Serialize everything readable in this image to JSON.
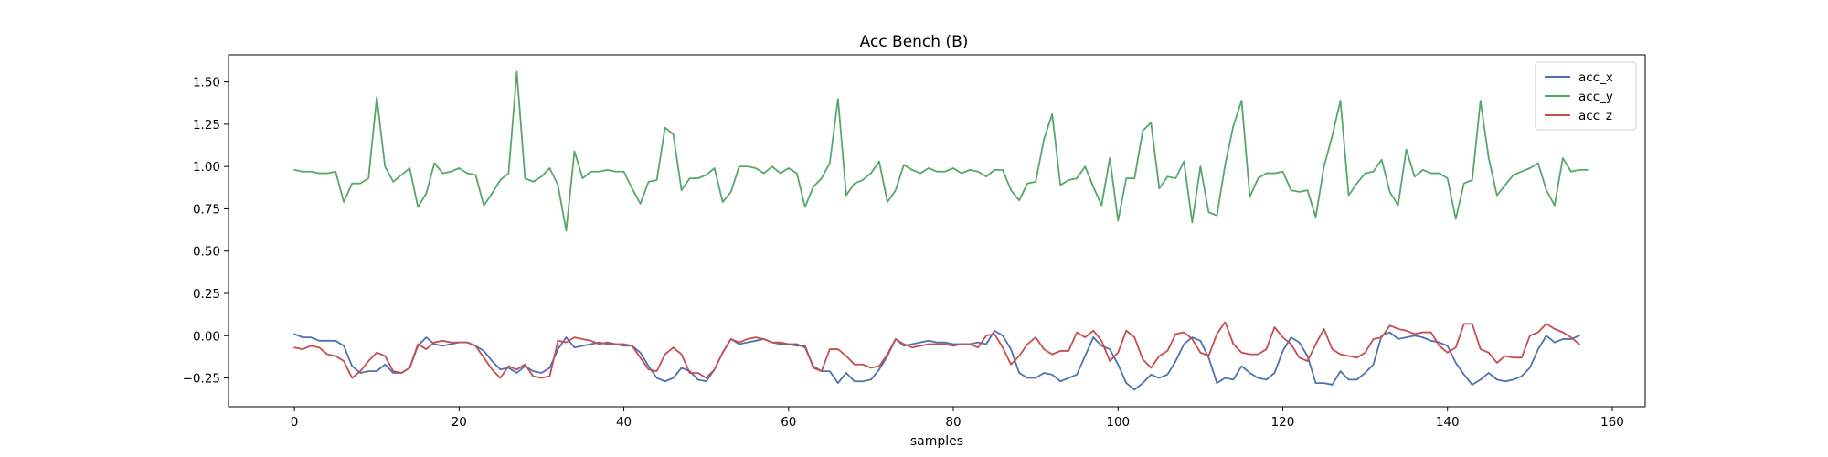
{
  "chart_data": {
    "type": "line",
    "title": "Acc Bench (B)",
    "xlabel": "samples",
    "ylabel": "",
    "xlim": [
      -8,
      164
    ],
    "ylim": [
      -0.42,
      1.66
    ],
    "xticks": [
      0,
      20,
      40,
      60,
      80,
      100,
      120,
      140,
      160
    ],
    "yticks": [
      -0.25,
      0.0,
      0.25,
      0.5,
      0.75,
      1.0,
      1.25,
      1.5
    ],
    "ytick_labels": [
      "−0.25",
      "0.00",
      "0.25",
      "0.50",
      "0.75",
      "1.00",
      "1.25",
      "1.50"
    ],
    "grid": false,
    "legend_position": "top-right",
    "series": [
      {
        "name": "acc_x",
        "color": "#4c72b0",
        "values": [
          0.01,
          -0.01,
          -0.01,
          -0.03,
          -0.03,
          -0.03,
          -0.06,
          -0.18,
          -0.22,
          -0.21,
          -0.21,
          -0.17,
          -0.22,
          -0.22,
          -0.19,
          -0.06,
          -0.01,
          -0.05,
          -0.06,
          -0.05,
          -0.04,
          -0.04,
          -0.06,
          -0.09,
          -0.15,
          -0.2,
          -0.19,
          -0.22,
          -0.18,
          -0.21,
          -0.22,
          -0.19,
          -0.08,
          -0.01,
          -0.07,
          -0.06,
          -0.05,
          -0.04,
          -0.05,
          -0.05,
          -0.06,
          -0.06,
          -0.1,
          -0.18,
          -0.25,
          -0.27,
          -0.25,
          -0.19,
          -0.21,
          -0.26,
          -0.27,
          -0.2,
          -0.1,
          -0.02,
          -0.05,
          -0.04,
          -0.03,
          -0.02,
          -0.04,
          -0.05,
          -0.05,
          -0.05,
          -0.07,
          -0.18,
          -0.21,
          -0.21,
          -0.28,
          -0.22,
          -0.27,
          -0.27,
          -0.26,
          -0.2,
          -0.12,
          -0.02,
          -0.06,
          -0.05,
          -0.04,
          -0.03,
          -0.04,
          -0.04,
          -0.05,
          -0.05,
          -0.05,
          -0.04,
          -0.05,
          0.03,
          0.0,
          -0.08,
          -0.22,
          -0.25,
          -0.25,
          -0.22,
          -0.23,
          -0.27,
          -0.25,
          -0.23,
          -0.12,
          -0.01,
          -0.06,
          -0.08,
          -0.17,
          -0.28,
          -0.32,
          -0.28,
          -0.23,
          -0.25,
          -0.23,
          -0.15,
          -0.05,
          -0.01,
          -0.03,
          -0.13,
          -0.28,
          -0.25,
          -0.26,
          -0.18,
          -0.22,
          -0.25,
          -0.26,
          -0.22,
          -0.09,
          -0.01,
          -0.04,
          -0.12,
          -0.28,
          -0.28,
          -0.29,
          -0.21,
          -0.26,
          -0.26,
          -0.22,
          -0.17,
          0.0,
          0.02,
          -0.02,
          -0.01,
          0.0,
          -0.01,
          -0.03,
          -0.04,
          -0.06,
          -0.16,
          -0.23,
          -0.29,
          -0.26,
          -0.22,
          -0.26,
          -0.27,
          -0.26,
          -0.24,
          -0.19,
          -0.08,
          0.0,
          -0.04,
          -0.02,
          -0.02,
          0.0
        ]
      },
      {
        "name": "acc_y",
        "color": "#55a868",
        "values": [
          0.98,
          0.97,
          0.97,
          0.96,
          0.96,
          0.97,
          0.79,
          0.9,
          0.9,
          0.93,
          1.41,
          1.0,
          0.91,
          0.95,
          0.99,
          0.76,
          0.84,
          1.02,
          0.96,
          0.97,
          0.99,
          0.96,
          0.95,
          0.77,
          0.84,
          0.92,
          0.96,
          1.56,
          0.93,
          0.91,
          0.94,
          0.99,
          0.89,
          0.62,
          1.09,
          0.93,
          0.97,
          0.97,
          0.98,
          0.97,
          0.97,
          0.87,
          0.78,
          0.91,
          0.92,
          1.23,
          1.19,
          0.86,
          0.93,
          0.93,
          0.95,
          0.99,
          0.79,
          0.85,
          1.0,
          1.0,
          0.99,
          0.96,
          1.0,
          0.96,
          0.99,
          0.96,
          0.76,
          0.88,
          0.93,
          1.02,
          1.4,
          0.83,
          0.9,
          0.92,
          0.96,
          1.03,
          0.79,
          0.86,
          1.01,
          0.98,
          0.96,
          0.99,
          0.97,
          0.97,
          0.99,
          0.96,
          0.98,
          0.97,
          0.94,
          0.98,
          0.98,
          0.86,
          0.8,
          0.9,
          0.91,
          1.16,
          1.31,
          0.89,
          0.92,
          0.93,
          1.0,
          0.88,
          0.77,
          1.05,
          0.68,
          0.93,
          0.93,
          1.21,
          1.26,
          0.87,
          0.94,
          0.93,
          1.03,
          0.67,
          1.0,
          0.73,
          0.71,
          1.01,
          1.24,
          1.39,
          0.82,
          0.93,
          0.96,
          0.96,
          0.97,
          0.86,
          0.85,
          0.86,
          0.7,
          1.0,
          1.18,
          1.39,
          0.83,
          0.9,
          0.96,
          0.97,
          1.04,
          0.85,
          0.77,
          1.1,
          0.94,
          0.98,
          0.96,
          0.96,
          0.93,
          0.69,
          0.9,
          0.92,
          1.39,
          1.05,
          0.83,
          0.89,
          0.95,
          0.97,
          0.99,
          1.02,
          0.86,
          0.77,
          1.05,
          0.97,
          0.98,
          0.98
        ]
      },
      {
        "name": "acc_z",
        "color": "#c44e52",
        "values": [
          -0.07,
          -0.08,
          -0.06,
          -0.07,
          -0.11,
          -0.12,
          -0.15,
          -0.25,
          -0.21,
          -0.15,
          -0.1,
          -0.12,
          -0.21,
          -0.22,
          -0.19,
          -0.05,
          -0.08,
          -0.04,
          -0.03,
          -0.04,
          -0.04,
          -0.04,
          -0.06,
          -0.13,
          -0.2,
          -0.25,
          -0.18,
          -0.2,
          -0.17,
          -0.24,
          -0.25,
          -0.24,
          -0.03,
          -0.04,
          -0.01,
          -0.02,
          -0.03,
          -0.05,
          -0.04,
          -0.05,
          -0.05,
          -0.06,
          -0.13,
          -0.2,
          -0.21,
          -0.11,
          -0.07,
          -0.11,
          -0.22,
          -0.22,
          -0.25,
          -0.2,
          -0.1,
          -0.02,
          -0.04,
          -0.02,
          -0.01,
          -0.02,
          -0.04,
          -0.04,
          -0.05,
          -0.06,
          -0.06,
          -0.19,
          -0.21,
          -0.08,
          -0.08,
          -0.12,
          -0.17,
          -0.17,
          -0.19,
          -0.18,
          -0.11,
          -0.02,
          -0.05,
          -0.07,
          -0.06,
          -0.05,
          -0.05,
          -0.05,
          -0.06,
          -0.05,
          -0.05,
          -0.07,
          0.0,
          0.01,
          -0.07,
          -0.17,
          -0.12,
          -0.05,
          -0.01,
          -0.08,
          -0.11,
          -0.09,
          -0.09,
          0.02,
          -0.01,
          0.03,
          -0.03,
          -0.15,
          -0.1,
          0.03,
          -0.01,
          -0.14,
          -0.19,
          -0.12,
          -0.09,
          0.01,
          0.02,
          -0.02,
          -0.1,
          -0.12,
          0.01,
          0.08,
          -0.05,
          -0.1,
          -0.11,
          -0.11,
          -0.08,
          0.05,
          -0.01,
          -0.05,
          -0.13,
          -0.15,
          -0.05,
          0.04,
          -0.08,
          -0.11,
          -0.12,
          -0.13,
          -0.1,
          -0.02,
          -0.01,
          0.06,
          0.04,
          0.03,
          0.01,
          0.02,
          0.02,
          -0.06,
          -0.1,
          -0.07,
          0.07,
          0.07,
          -0.08,
          -0.1,
          -0.16,
          -0.12,
          -0.13,
          -0.13,
          0.0,
          0.02,
          0.07,
          0.04,
          0.02,
          -0.01,
          -0.05
        ]
      }
    ]
  }
}
